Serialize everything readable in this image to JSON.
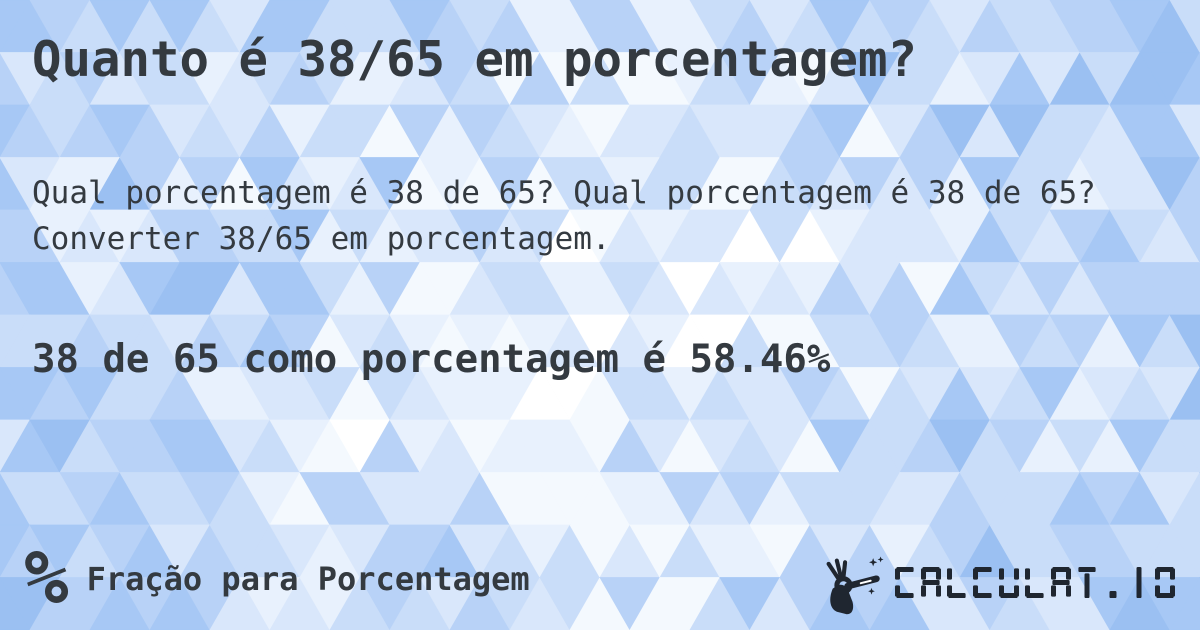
{
  "page": {
    "title": "Quanto é 38/65 em porcentagem?",
    "description": "Qual porcentagem é 38 de 65? Qual porcentagem é 38 de 65? Converter 38/65 em porcentagem.",
    "answer": "38 de 65 como porcentagem é 58.46%"
  },
  "footer": {
    "category": {
      "icon": "percent-icon",
      "symbol": "%",
      "label": "Fração para Porcentagem"
    },
    "brand": {
      "icon": "hand-magic-wand-icon",
      "name": "CALCULAT.IO"
    }
  },
  "colors": {
    "text": "#343a40",
    "brand": "#1f2630",
    "background_palette": [
      "#ffffff",
      "#f4f9fe",
      "#e8f1fd",
      "#d9e7fb",
      "#c9ddf9",
      "#b8d2f7",
      "#a7c8f5",
      "#9bc0f2"
    ]
  }
}
